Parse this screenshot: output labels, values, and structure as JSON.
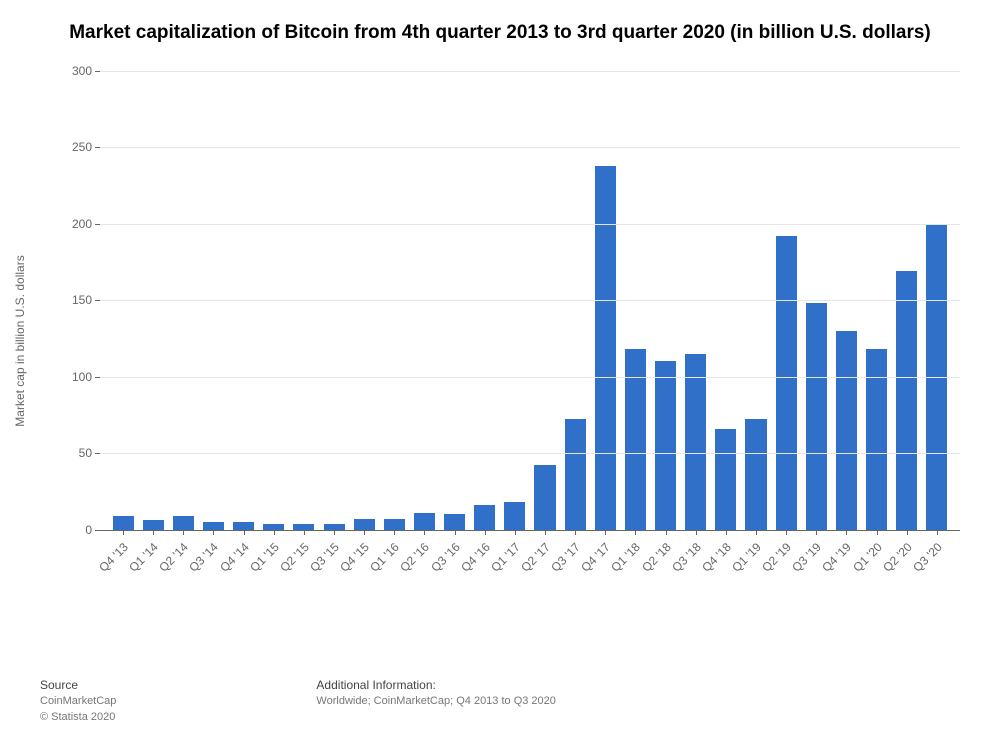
{
  "title": "Market capitalization of Bitcoin from 4th quarter 2013 to 3rd quarter 2020 (in billion U.S. dollars)",
  "chart": {
    "type": "bar",
    "ylabel": "Market cap in billion U.S. dollars",
    "ylabel_fontsize": 12,
    "ylabel_color": "#666666",
    "title_fontsize": 19,
    "title_color": "#000000",
    "background_color": "#ffffff",
    "grid_color": "#e6e6e6",
    "axis_color": "#666666",
    "tick_label_color": "#666666",
    "tick_fontsize": 12,
    "bar_color": "#3070c8",
    "bar_width": 0.7,
    "ylim": [
      0,
      300
    ],
    "ytick_step": 50,
    "yticks": [
      0,
      50,
      100,
      150,
      200,
      250,
      300
    ],
    "categories": [
      "Q4 '13",
      "Q1 '14",
      "Q2 '14",
      "Q3 '14",
      "Q4 '14",
      "Q1 '15",
      "Q2 '15",
      "Q3 '15",
      "Q4 '15",
      "Q1 '16",
      "Q2 '16",
      "Q3 '16",
      "Q4 '16",
      "Q1 '17",
      "Q2 '17",
      "Q3 '17",
      "Q4 '17",
      "Q1 '18",
      "Q2 '18",
      "Q3 '18",
      "Q4 '18",
      "Q1 '19",
      "Q2 '19",
      "Q3 '19",
      "Q4 '19",
      "Q1 '20",
      "Q2 '20",
      "Q3 '20"
    ],
    "values": [
      9,
      6,
      9,
      5,
      5,
      4,
      4,
      4,
      7,
      7,
      11,
      10,
      16,
      18,
      42,
      72,
      238,
      118,
      110,
      115,
      66,
      72,
      192,
      148,
      130,
      118,
      169,
      199
    ]
  },
  "footer": {
    "source_heading": "Source",
    "source_text": "CoinMarketCap",
    "copyright": "© Statista 2020",
    "info_heading": "Additional Information:",
    "info_text": "Worldwide; CoinMarketCap; Q4 2013 to Q3 2020",
    "heading_fontsize": 12,
    "heading_color": "#444444",
    "sub_fontsize": 11,
    "sub_color": "#777777"
  }
}
